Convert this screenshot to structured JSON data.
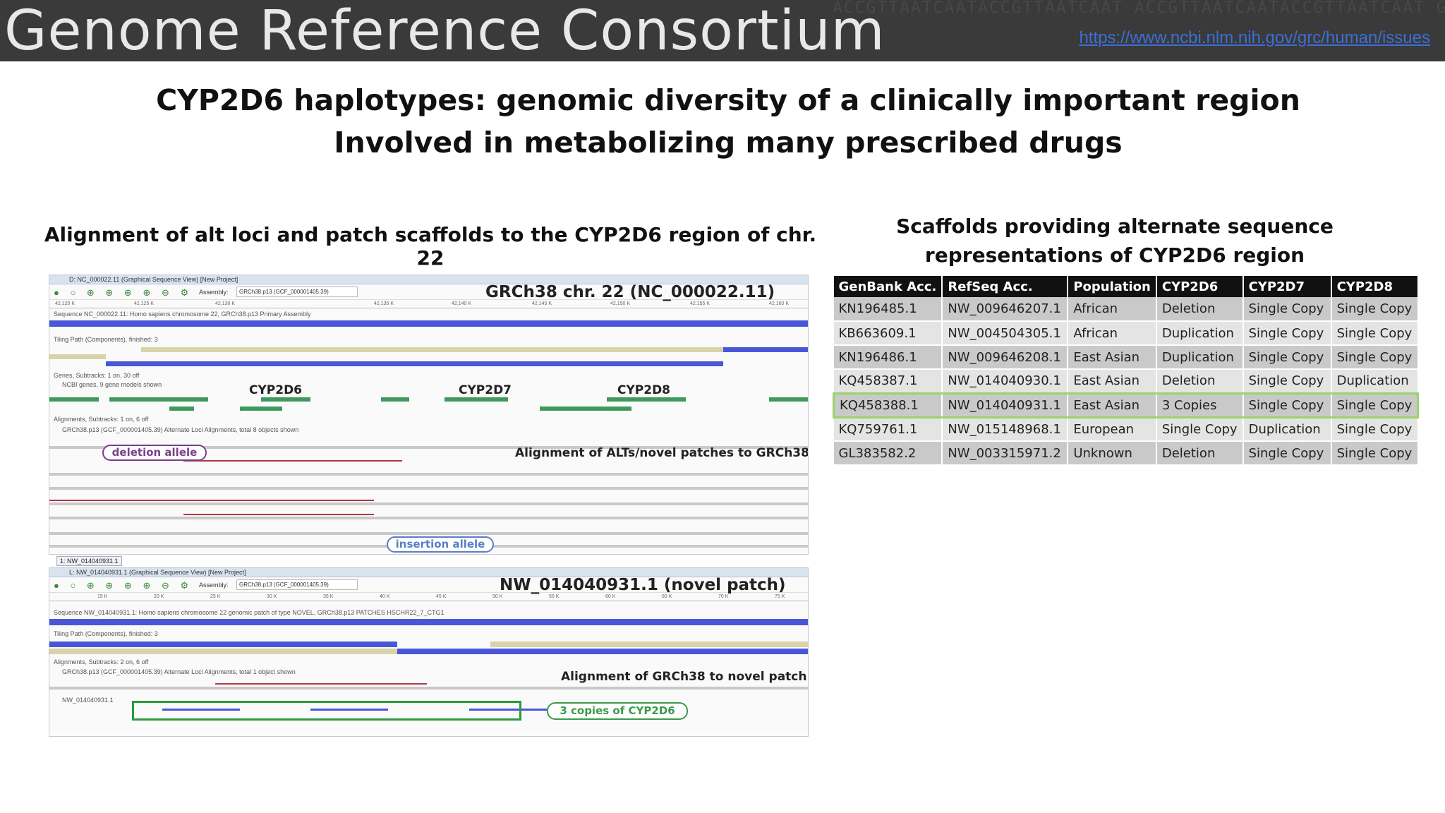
{
  "banner": {
    "title": "Genome Reference Consortium",
    "link": "https://www.ncbi.nlm.nih.gov/grc/human/issues",
    "bg_text": "ACCGTTAATCAATACCGTTAATCAAT ACCGTTAATCAATACCGTTAATCAAT GACCTAATAGACCTAATAGACCTAAT TTACGGATTACGGATTACGG"
  },
  "slide": {
    "title_line1": "CYP2D6 haplotypes: genomic diversity of a clinically important region",
    "title_line2": "Involved in metabolizing many prescribed drugs",
    "left_heading": "Alignment of alt loci and patch scaffolds to the CYP2D6 region of chr. 22",
    "right_heading_line1": "Scaffolds providing alternate sequence",
    "right_heading_line2": "representations of CYP2D6 region"
  },
  "viewer_top": {
    "window_title": "D: NC_000022.11 (Graphical Sequence View) [New Project]",
    "assembly_label": "Assembly:",
    "assembly_value": "GRCh38.p13 (GCF_000001405.39)",
    "seq_title": "GRCh38 chr. 22 (NC_000022.11)",
    "ruler": [
      "42,120 K",
      "42,125 K",
      "42,130 K",
      "42,135 K",
      "42,140 K",
      "42,145 K",
      "42,150 K",
      "42,155 K",
      "42,160 K"
    ],
    "sequence_label": "Sequence NC_000022.11: Homo sapiens chromosome 22, GRCh38.p13 Primary Assembly",
    "tiling_label": "Tiling Path (Components), finished: 3",
    "genes_label": "Genes, Subtracks: 1 on, 30 off",
    "ncbi_genes_label": "NCBI genes, 9 gene models shown",
    "gene1": "CYP2D6",
    "gene2": "CYP2D7",
    "gene3": "CYP2D8",
    "alignments_label": "Alignments, Subtracks: 1 on, 6 off",
    "alt_loci_label": "GRCh38.p13 (GCF_000001405.39) Alternate Loci Alignments, total 8 objects shown",
    "deletion_callout": "deletion allele",
    "insertion_callout": "insertion allele",
    "annotation": "Alignment of ALTs/novel patches to GRCh38",
    "tab_label": "1: NW_014040931.1"
  },
  "viewer_bottom": {
    "window_title": "L: NW_014040931.1 (Graphical Sequence View) [New Project]",
    "assembly_label": "Assembly:",
    "assembly_value": "GRCh38.p13 (GCF_000001405.39)",
    "seq_title": "NW_014040931.1 (novel patch)",
    "ruler": [
      "15 K",
      "20 K",
      "25 K",
      "30 K",
      "35 K",
      "40 K",
      "45 K",
      "50 K",
      "55 K",
      "60 K",
      "65 K",
      "70 K",
      "75 K"
    ],
    "sequence_label": "Sequence NW_014040931.1: Homo sapiens chromosome 22 genomic patch of type NOVEL, GRCh38.p13 PATCHES HSCHR22_7_CTG1",
    "tiling_label": "Tiling Path (Components), finished: 3",
    "alignments_label": "Alignments, Subtracks: 2 on, 6 off",
    "alt_loci_label": "GRCh38.p13 (GCF_000001405.39) Alternate Loci Alignments, total 1 object shown",
    "nw_label": "NW_014040931.1",
    "annotation": "Alignment of GRCh38 to novel patch",
    "copies_callout": "3 copies of CYP2D6"
  },
  "table": {
    "headers": [
      "GenBank Acc.",
      "RefSeq Acc.",
      "Population",
      "CYP2D6",
      "CYP2D7",
      "CYP2D8"
    ],
    "rows": [
      [
        "KN196485.1",
        "NW_009646207.1",
        "African",
        "Deletion",
        "Single Copy",
        "Single Copy"
      ],
      [
        "KB663609.1",
        "NW_004504305.1",
        "African",
        "Duplication",
        "Single Copy",
        "Single Copy"
      ],
      [
        "KN196486.1",
        "NW_009646208.1",
        "East Asian",
        "Duplication",
        "Single Copy",
        "Single Copy"
      ],
      [
        "KQ458387.1",
        "NW_014040930.1",
        "East Asian",
        "Deletion",
        "Single Copy",
        "Duplication"
      ],
      [
        "KQ458388.1",
        "NW_014040931.1",
        "East Asian",
        "3 Copies",
        "Single Copy",
        "Single Copy"
      ],
      [
        "KQ759761.1",
        "NW_015148968.1",
        "European",
        "Single Copy",
        "Duplication",
        "Single Copy"
      ],
      [
        "GL383582.2",
        "NW_003315971.2",
        "Unknown",
        "Deletion",
        "Single Copy",
        "Single Copy"
      ]
    ],
    "highlight_row_index": 4,
    "highlight_color": "#9cd26b"
  }
}
